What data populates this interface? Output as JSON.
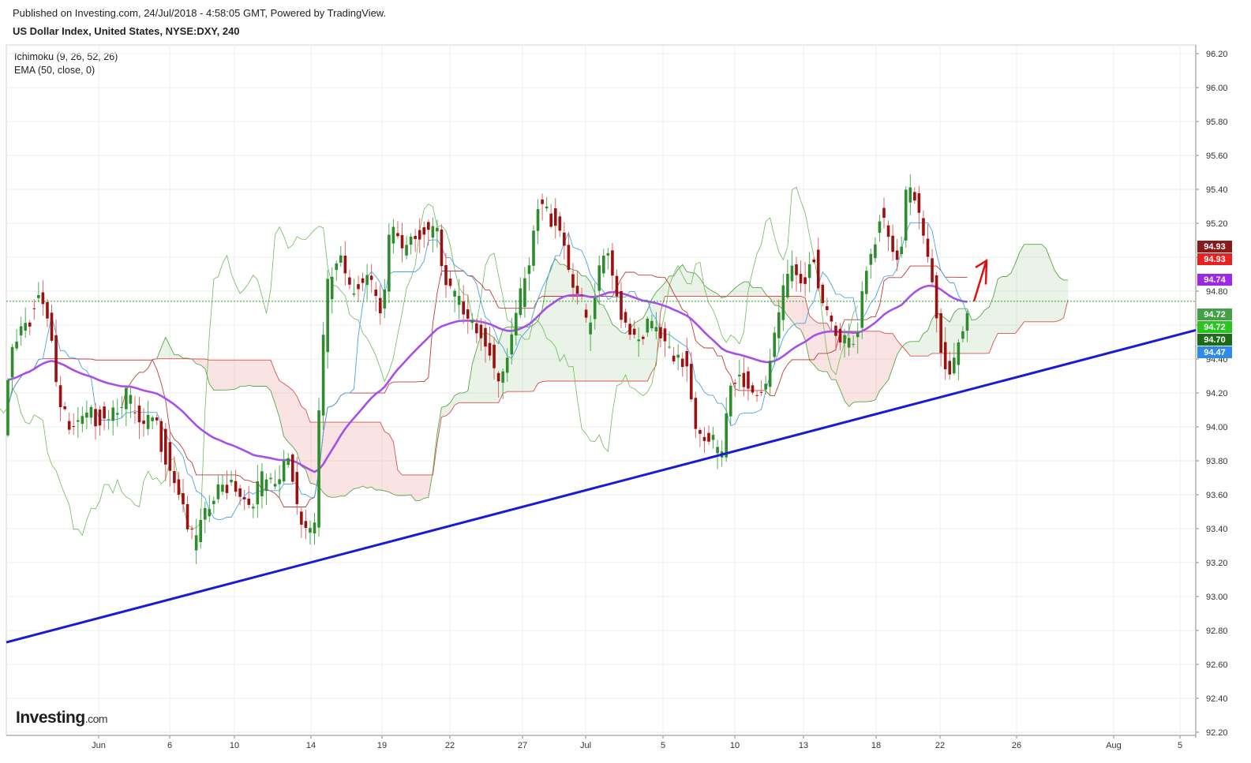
{
  "header": {
    "published": "Published on Investing.com, 24/Jul/2018 - 4:58:05 GMT, Powered by TradingView.",
    "symbol": "US Dollar Index, United States, NYSE:DXY, 240"
  },
  "legend": [
    "Ichimoku (9, 26, 52, 26)",
    "EMA (50, close, 0)"
  ],
  "logo": {
    "main": "Investing",
    "suffix": ".com"
  },
  "chart_data": {
    "type": "candlestick",
    "ylim": [
      92.2,
      96.2
    ],
    "y_ticks": [
      "96.20",
      "96.00",
      "95.80",
      "95.60",
      "95.40",
      "95.20",
      "95.00",
      "94.80",
      "94.60",
      "94.40",
      "94.20",
      "94.00",
      "93.80",
      "93.60",
      "93.40",
      "93.20",
      "93.00",
      "92.80",
      "92.60",
      "92.40",
      "92.20"
    ],
    "x_ticks": [
      "Jun",
      "6",
      "10",
      "14",
      "19",
      "22",
      "27",
      "Jul",
      "5",
      "10",
      "13",
      "18",
      "22",
      "26",
      "Aug",
      "5"
    ],
    "price_labels": [
      {
        "value": "94.93",
        "color": "#8b1a1a"
      },
      {
        "value": "94.93",
        "color": "#e8201f"
      },
      {
        "value": "94.74",
        "color": "#9c27e6"
      },
      {
        "value": "94.72",
        "color": "#43a047"
      },
      {
        "value": "94.72",
        "color": "#29c41f"
      },
      {
        "value": "94.70",
        "color": "#1b6b1b"
      },
      {
        "value": "94.47",
        "color": "#2f8be6"
      }
    ],
    "colors": {
      "up": "#2e8b2e",
      "down": "#9b1111",
      "ema": "#a650e8",
      "tenkan": "#4aa3e8",
      "kijun": "#c23b3b",
      "span_a": "#5aa64a",
      "span_b": "#d9534f",
      "trendline": "#1a1ad6",
      "arrow": "#e01010",
      "current": "#22a022"
    }
  }
}
